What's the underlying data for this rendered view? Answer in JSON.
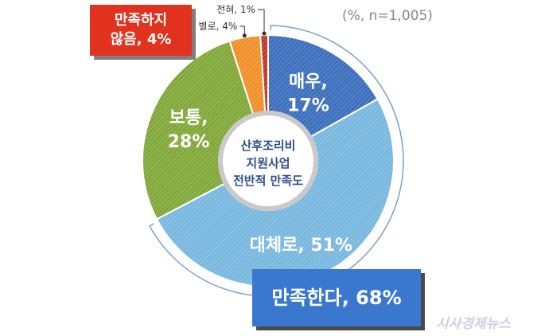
{
  "note": "(%, n=1,005)",
  "center_label": [
    "산후조리비",
    "지원사업",
    "전반적 만족도"
  ],
  "callout_dissatisfied": [
    "만족하지",
    "않음, 4%"
  ],
  "callout_satisfied": "만족한다, 68%",
  "watermark": "시사경제뉴스",
  "colors": {
    "very": "#3d6fbd",
    "mostly": "#79b8df",
    "normal": "#82a83a",
    "not_really": "#f0902a",
    "not_at_all": "#c8342a",
    "callout_red": "#e0321f",
    "callout_blue": "#3a78cf"
  },
  "chart_data": {
    "type": "pie",
    "title": "",
    "slices": [
      {
        "name": "매우",
        "value": 17,
        "label": [
          "매우,",
          "17%"
        ],
        "color": "#3d6fbd"
      },
      {
        "name": "대체로",
        "value": 51,
        "label": [
          "대체로, 51%"
        ],
        "color": "#79b8df"
      },
      {
        "name": "보통",
        "value": 28,
        "label": [
          "보통,",
          "28%"
        ],
        "color": "#82a83a"
      },
      {
        "name": "별로",
        "value": 4,
        "label": [
          "별로, 4%"
        ],
        "color": "#f0902a"
      },
      {
        "name": "전혀",
        "value": 1,
        "label": [
          "전혀, 1%"
        ],
        "color": "#c8342a"
      }
    ],
    "groups": [
      {
        "name": "만족한다",
        "value": 68
      },
      {
        "name": "만족하지 않음",
        "value": 4
      }
    ]
  }
}
